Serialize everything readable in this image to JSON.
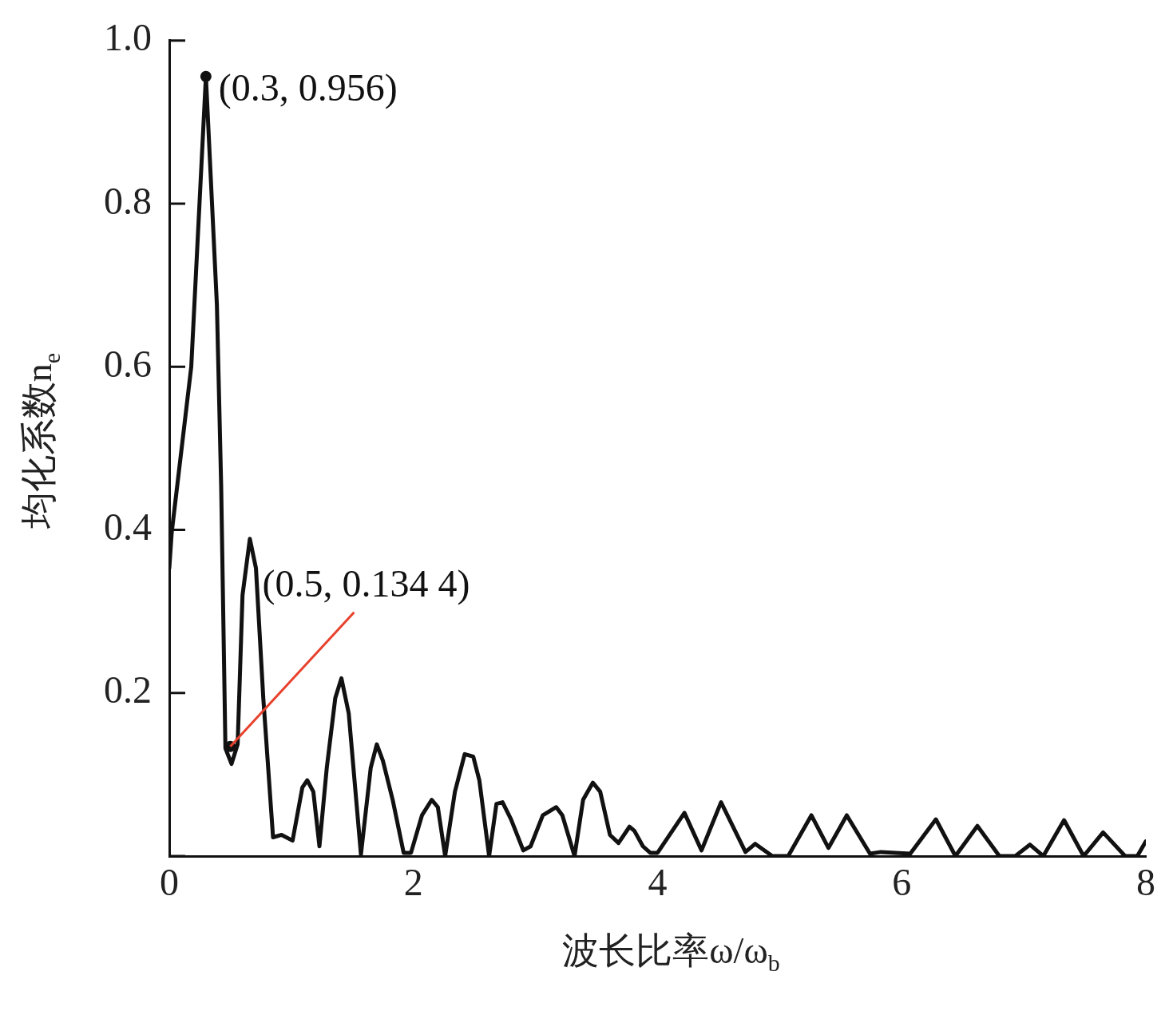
{
  "chart_data": {
    "type": "line",
    "xlabel": "波长比率ω/ω$_{b}$",
    "ylabel": "均化系数n$_{e}$",
    "series": [
      {
        "color": "#111111",
        "x": [
          0,
          0.02,
          0.18,
          0.3,
          0.39,
          0.425,
          0.46,
          0.51,
          0.56,
          0.6,
          0.66,
          0.71,
          0.77,
          0.85,
          0.92,
          1.01,
          1.09,
          1.13,
          1.18,
          1.23,
          1.29,
          1.36,
          1.41,
          1.47,
          1.57,
          1.65,
          1.7,
          1.75,
          1.83,
          1.92,
          1.98,
          2.07,
          2.15,
          2.2,
          2.26,
          2.34,
          2.42,
          2.49,
          2.54,
          2.62,
          2.68,
          2.73,
          2.8,
          2.9,
          2.96,
          3.06,
          3.17,
          3.22,
          3.32,
          3.39,
          3.47,
          3.53,
          3.61,
          3.68,
          3.77,
          3.81,
          3.88,
          3.94,
          4.0,
          4.22,
          4.36,
          4.52,
          4.72,
          4.8,
          4.94,
          5.07,
          5.26,
          5.4,
          5.55,
          5.74,
          5.83,
          6.07,
          6.28,
          6.44,
          6.62,
          6.8,
          6.93,
          7.05,
          7.16,
          7.33,
          7.49,
          7.65,
          7.83,
          7.93,
          8.0
        ],
        "values": [
          0.353,
          0.397,
          0.6,
          0.956,
          0.676,
          0.454,
          0.132,
          0.113,
          0.137,
          0.32,
          0.389,
          0.353,
          0.194,
          0.023,
          0.026,
          0.019,
          0.084,
          0.093,
          0.079,
          0.012,
          0.108,
          0.194,
          0.218,
          0.175,
          0.002,
          0.108,
          0.137,
          0.117,
          0.069,
          0.004,
          0.004,
          0.05,
          0.069,
          0.06,
          0.0,
          0.079,
          0.125,
          0.122,
          0.093,
          0.0,
          0.064,
          0.066,
          0.045,
          0.007,
          0.012,
          0.05,
          0.06,
          0.05,
          0.0,
          0.069,
          0.09,
          0.079,
          0.026,
          0.016,
          0.036,
          0.031,
          0.012,
          0.004,
          0.004,
          0.053,
          0.007,
          0.066,
          0.005,
          0.015,
          0.0,
          0.0,
          0.05,
          0.01,
          0.05,
          0.003,
          0.005,
          0.003,
          0.045,
          0.0,
          0.037,
          0.0,
          0.0,
          0.014,
          0.0,
          0.044,
          0.0,
          0.029,
          0.0,
          0.0,
          0.018
        ]
      }
    ],
    "xlim": [
      0,
      8
    ],
    "xticks": [
      0,
      2,
      4,
      6,
      8
    ],
    "ylim": [
      0,
      1
    ],
    "yticks": [
      {
        "value": 0,
        "label": null
      },
      0.2,
      0.4,
      0.6,
      0.8,
      {
        "value": 1,
        "label": "1.0"
      }
    ],
    "grid": false,
    "legend": false,
    "marker": "none",
    "line_style": "solid",
    "annotations": [
      {
        "text": "(0.3, 0.956)",
        "x": 0.3,
        "y": 0.956
      },
      {
        "text": "(0.5, 0.134 4)",
        "x": 0.5,
        "y": 0.1344
      }
    ]
  }
}
